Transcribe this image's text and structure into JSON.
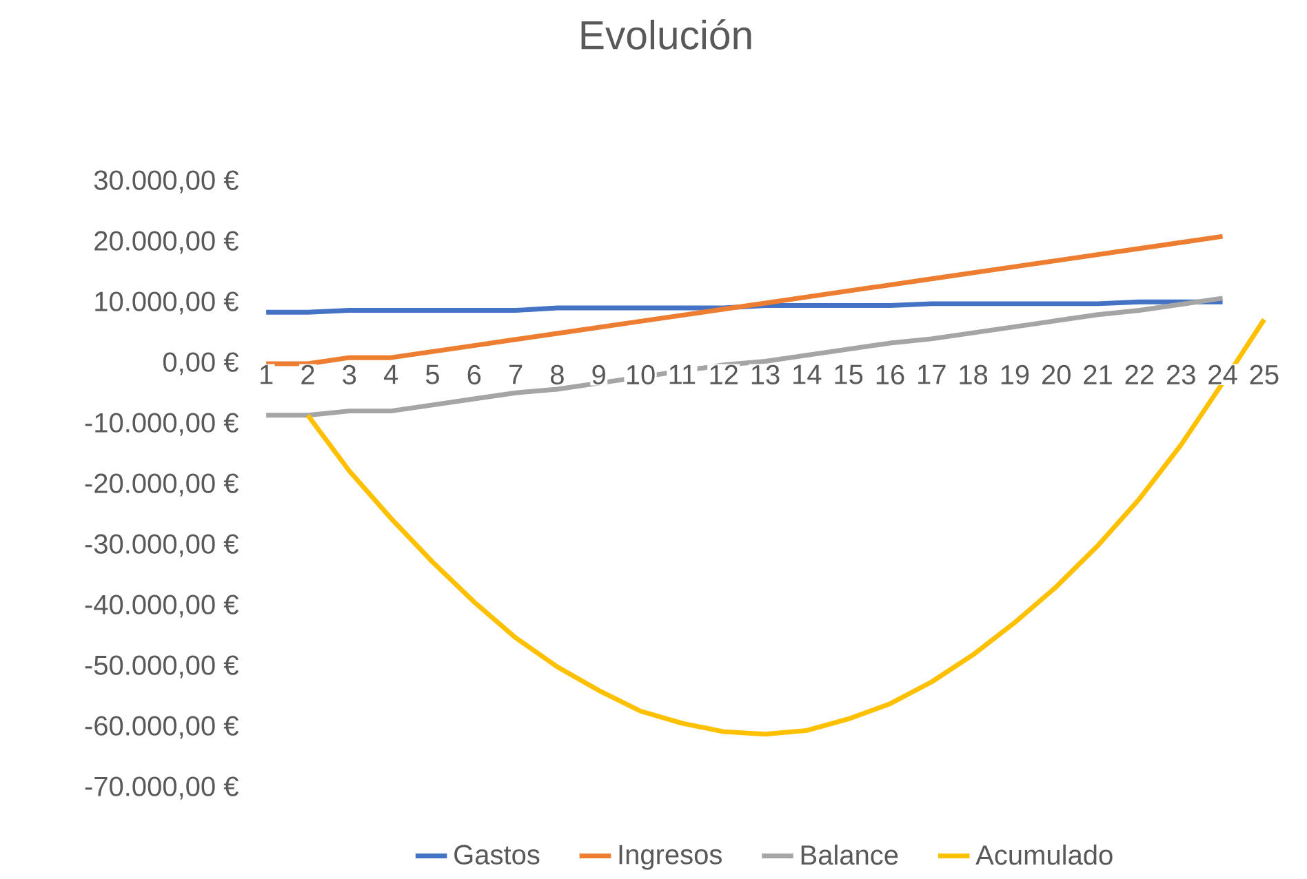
{
  "chart_data": {
    "type": "line",
    "title": "Evolución",
    "categories": [
      "1",
      "2",
      "3",
      "4",
      "5",
      "6",
      "7",
      "8",
      "9",
      "10",
      "11",
      "12",
      "13",
      "14",
      "15",
      "16",
      "17",
      "18",
      "19",
      "20",
      "21",
      "22",
      "23",
      "24",
      "25"
    ],
    "series": [
      {
        "name": "Gastos",
        "color": "#4472c4",
        "values": [
          8500,
          8500,
          8800,
          8800,
          8800,
          8800,
          8800,
          9200,
          9200,
          9200,
          9200,
          9200,
          9600,
          9600,
          9600,
          9600,
          9900,
          9900,
          9900,
          9900,
          9900,
          10200,
          10200,
          10200,
          null
        ]
      },
      {
        "name": "Ingresos",
        "color": "#ed7d31",
        "values": [
          0,
          0,
          1000,
          1000,
          2000,
          3000,
          4000,
          5000,
          6000,
          7000,
          8000,
          9000,
          10000,
          11000,
          12000,
          13000,
          14000,
          15000,
          16000,
          17000,
          18000,
          19000,
          20000,
          21000,
          null
        ]
      },
      {
        "name": "Balance",
        "color": "#a5a5a5",
        "values": [
          -8500,
          -8500,
          -7800,
          -7800,
          -6800,
          -5800,
          -4800,
          -4200,
          -3200,
          -2200,
          -1200,
          -200,
          400,
          1400,
          2400,
          3400,
          4100,
          5100,
          6100,
          7100,
          8100,
          8800,
          9800,
          10800,
          null
        ]
      },
      {
        "name": "Acumulado",
        "color": "#ffc000",
        "values": [
          null,
          -8500,
          -17700,
          -25500,
          -32700,
          -39300,
          -45200,
          -50000,
          -53900,
          -57300,
          -59300,
          -60700,
          -61100,
          -60500,
          -58600,
          -56100,
          -52500,
          -48000,
          -42700,
          -36800,
          -30000,
          -22300,
          -13400,
          -3200,
          7300
        ]
      }
    ],
    "ylim": [
      -70000,
      30000
    ],
    "yticks": [
      {
        "value": -70000,
        "label": "-70.000,00 €"
      },
      {
        "value": -60000,
        "label": "-60.000,00 €"
      },
      {
        "value": -50000,
        "label": "-50.000,00 €"
      },
      {
        "value": -40000,
        "label": "-40.000,00 €"
      },
      {
        "value": -30000,
        "label": "-30.000,00 €"
      },
      {
        "value": -20000,
        "label": "-20.000,00 €"
      },
      {
        "value": -10000,
        "label": "-10.000,00 €"
      },
      {
        "value": 0,
        "label": "0,00 €"
      },
      {
        "value": 10000,
        "label": "10.000,00 €"
      },
      {
        "value": 20000,
        "label": "20.000,00 €"
      },
      {
        "value": 30000,
        "label": "30.000,00 €"
      }
    ],
    "legend": "bottom",
    "grid": false,
    "line_style": "solid",
    "marker": "none"
  }
}
